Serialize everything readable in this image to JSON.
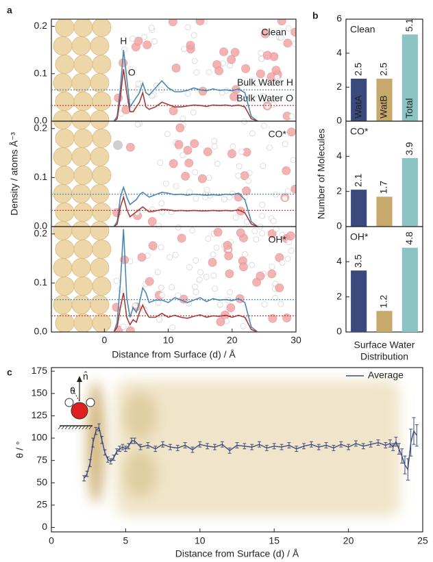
{
  "chart_data": [
    {
      "type": "line",
      "panel_label": "a",
      "annotation": "Clean",
      "x": [
        1.5,
        2,
        2.5,
        3,
        3.5,
        4,
        4.5,
        5,
        5.5,
        6,
        6.5,
        7,
        8,
        9,
        10,
        11,
        12,
        13,
        14,
        15,
        16,
        17,
        18,
        19,
        20,
        21,
        22,
        23,
        24
      ],
      "series": [
        {
          "name": "H",
          "color": "#4a86b0",
          "values": [
            0,
            0.01,
            0.07,
            0.15,
            0.09,
            0.03,
            0.04,
            0.05,
            0.06,
            0.08,
            0.06,
            0.055,
            0.07,
            0.085,
            0.07,
            0.062,
            0.062,
            0.065,
            0.07,
            0.066,
            0.064,
            0.068,
            0.065,
            0.066,
            0.064,
            0.068,
            0.06,
            0.01,
            0
          ]
        },
        {
          "name": "O",
          "color": "#a33a3a",
          "values": [
            0,
            0.005,
            0.05,
            0.11,
            0.06,
            0.02,
            0.02,
            0.03,
            0.04,
            0.06,
            0.03,
            0.025,
            0.03,
            0.04,
            0.035,
            0.03,
            0.03,
            0.032,
            0.034,
            0.033,
            0.031,
            0.034,
            0.033,
            0.034,
            0.032,
            0.034,
            0.03,
            0.005,
            0
          ]
        }
      ],
      "reference_lines": [
        {
          "label": "Bulk Water H",
          "value": 0.066,
          "color": "#4a86b0"
        },
        {
          "label": "Bulk Water O",
          "value": 0.033,
          "color": "#c0392b"
        }
      ],
      "xlim": [
        -8.3,
        30
      ],
      "ylim": [
        0,
        0.215
      ],
      "yticks": [
        {
          "value": 0,
          "label": "0.0"
        },
        0.1,
        0.2
      ]
    },
    {
      "type": "line",
      "annotation": "CO*",
      "ylabel": "Density / atoms Å⁻³",
      "x": [
        1.5,
        2,
        2.5,
        3,
        3.5,
        4,
        4.5,
        5,
        5.5,
        6,
        6.5,
        7,
        8,
        9,
        10,
        11,
        12,
        13,
        14,
        15,
        16,
        17,
        18,
        19,
        20,
        21,
        22,
        23,
        24
      ],
      "series": [
        {
          "color": "#4a86b0",
          "values": [
            0,
            0.01,
            0.06,
            0.08,
            0.06,
            0.045,
            0.05,
            0.055,
            0.065,
            0.07,
            0.065,
            0.06,
            0.065,
            0.07,
            0.068,
            0.065,
            0.066,
            0.064,
            0.066,
            0.065,
            0.064,
            0.065,
            0.064,
            0.066,
            0.065,
            0.068,
            0.055,
            0.01,
            0
          ]
        },
        {
          "color": "#a33a3a",
          "values": [
            0,
            0.005,
            0.04,
            0.06,
            0.035,
            0.02,
            0.025,
            0.03,
            0.035,
            0.04,
            0.035,
            0.03,
            0.032,
            0.035,
            0.034,
            0.032,
            0.033,
            0.032,
            0.033,
            0.032,
            0.032,
            0.033,
            0.032,
            0.033,
            0.032,
            0.034,
            0.028,
            0.005,
            0
          ]
        }
      ],
      "reference_lines": [
        {
          "value": 0.066,
          "color": "#4a86b0"
        },
        {
          "value": 0.033,
          "color": "#c0392b"
        }
      ],
      "xlim": [
        -8.3,
        30
      ],
      "ylim": [
        0,
        0.215
      ],
      "yticks": [
        {
          "value": 0,
          "label": "0.0"
        },
        0.1,
        0.2
      ]
    },
    {
      "type": "line",
      "annotation": "OH*",
      "xlabel": "Distance from Surface (d) / Å",
      "x": [
        1.5,
        2,
        2.5,
        3,
        3.5,
        4,
        4.5,
        5,
        5.5,
        6,
        6.5,
        7,
        8,
        9,
        10,
        11,
        12,
        13,
        14,
        15,
        16,
        17,
        18,
        19,
        20,
        21,
        22,
        23,
        24
      ],
      "series": [
        {
          "color": "#4a86b0",
          "values": [
            0,
            0.02,
            0.1,
            0.21,
            0.07,
            0.03,
            0.05,
            0.04,
            0.06,
            0.09,
            0.08,
            0.06,
            0.065,
            0.065,
            0.06,
            0.07,
            0.065,
            0.06,
            0.065,
            0.07,
            0.062,
            0.068,
            0.065,
            0.066,
            0.064,
            0.068,
            0.06,
            0.01,
            0
          ]
        },
        {
          "color": "#a33a3a",
          "values": [
            0,
            0.01,
            0.05,
            0.08,
            0.03,
            0.015,
            0.025,
            0.02,
            0.04,
            0.055,
            0.04,
            0.03,
            0.03,
            0.038,
            0.03,
            0.034,
            0.03,
            0.028,
            0.032,
            0.035,
            0.03,
            0.033,
            0.032,
            0.034,
            0.03,
            0.034,
            0.03,
            0.005,
            0
          ]
        }
      ],
      "reference_lines": [
        {
          "value": 0.066,
          "color": "#4a86b0"
        },
        {
          "value": 0.033,
          "color": "#c0392b"
        }
      ],
      "xlim": [
        -8.3,
        30
      ],
      "ylim": [
        0,
        0.215
      ],
      "yticks": [
        {
          "value": 0,
          "label": "0.0"
        },
        0.1,
        0.2
      ],
      "xticks": [
        0,
        10,
        20,
        30
      ]
    },
    {
      "type": "bar",
      "panel_label": "b",
      "annotation": "Clean",
      "categories": [
        "WatA",
        "WatB",
        "Total"
      ],
      "values": [
        2.5,
        2.5,
        5.1
      ],
      "colors": [
        "#3a4a7c",
        "#c7a96b",
        "#8cc4c4"
      ],
      "ylim": [
        0,
        6
      ],
      "yticks": [
        0,
        2,
        4,
        6
      ]
    },
    {
      "type": "bar",
      "annotation": "CO*",
      "ylabel": "Number of Molecules",
      "categories": [
        null,
        null,
        null
      ],
      "values": [
        2.1,
        1.7,
        3.9
      ],
      "colors": [
        "#3a4a7c",
        "#c7a96b",
        "#8cc4c4"
      ],
      "ylim": [
        0,
        6
      ],
      "yticks": [
        0,
        2,
        4
      ]
    },
    {
      "type": "bar",
      "annotation": "OH*",
      "xlabel": [
        "Surface Water",
        "Distribution"
      ],
      "categories": [
        null,
        null,
        null
      ],
      "values": [
        3.5,
        1.2,
        4.8
      ],
      "colors": [
        "#3a4a7c",
        "#c7a96b",
        "#8cc4c4"
      ],
      "ylim": [
        0,
        6
      ],
      "yticks": [
        0,
        2,
        4
      ]
    },
    {
      "type": "errorline",
      "panel_label": "c",
      "xlabel": "Distance from Surface (d) / Å",
      "ylabel": "θ / °",
      "inset_labels": [
        "n̂",
        "θ"
      ],
      "x": [
        2.2,
        2.4,
        2.6,
        2.8,
        3.0,
        3.2,
        3.4,
        3.6,
        3.8,
        4.0,
        4.2,
        4.4,
        4.6,
        4.8,
        5.0,
        5.2,
        5.4,
        5.6,
        6,
        6.5,
        7,
        7.5,
        8,
        8.5,
        9,
        9.5,
        10,
        10.5,
        11,
        11.5,
        12,
        12.5,
        13,
        13.5,
        14,
        14.5,
        15,
        15.5,
        16,
        16.5,
        17,
        17.5,
        18,
        18.5,
        19,
        19.5,
        20,
        20.5,
        21,
        21.5,
        22,
        22.5,
        22.8,
        23.0,
        23.2,
        23.4,
        23.6,
        23.8,
        24.0,
        24.2,
        24.4,
        24.6
      ],
      "series": [
        {
          "name": "Average",
          "color": "#3a4a7c",
          "values": [
            55,
            60,
            72,
            95,
            108,
            112,
            98,
            84,
            76,
            74,
            78,
            85,
            88,
            90,
            88,
            91,
            97,
            97,
            90,
            92,
            88,
            93,
            90,
            89,
            92,
            87,
            93,
            91,
            90,
            93,
            86,
            92,
            91,
            90,
            93,
            89,
            91,
            90,
            92,
            88,
            91,
            93,
            90,
            92,
            89,
            93,
            90,
            94,
            91,
            93,
            95,
            92,
            94,
            90,
            96,
            88,
            80,
            70,
            65,
            95,
            108,
            103
          ],
          "errors": [
            3,
            3,
            4,
            5,
            4,
            4,
            4,
            3,
            3,
            3,
            3,
            3,
            3,
            3,
            3,
            3,
            3,
            3,
            3,
            3,
            3,
            3,
            3,
            3,
            3,
            3,
            3,
            3,
            3,
            3,
            3,
            3,
            3,
            3,
            3,
            3,
            3,
            3,
            3,
            3,
            3,
            3,
            3,
            3,
            3,
            3,
            3,
            3,
            3,
            3,
            3,
            3,
            4,
            4,
            5,
            6,
            8,
            10,
            12,
            15,
            15,
            12
          ]
        }
      ],
      "xlim": [
        0,
        25
      ],
      "ylim": [
        -5,
        179
      ],
      "xticks": [
        0,
        5,
        10,
        15,
        20,
        25
      ],
      "yticks": [
        0,
        25,
        50,
        75,
        100,
        125,
        150,
        175
      ]
    }
  ]
}
